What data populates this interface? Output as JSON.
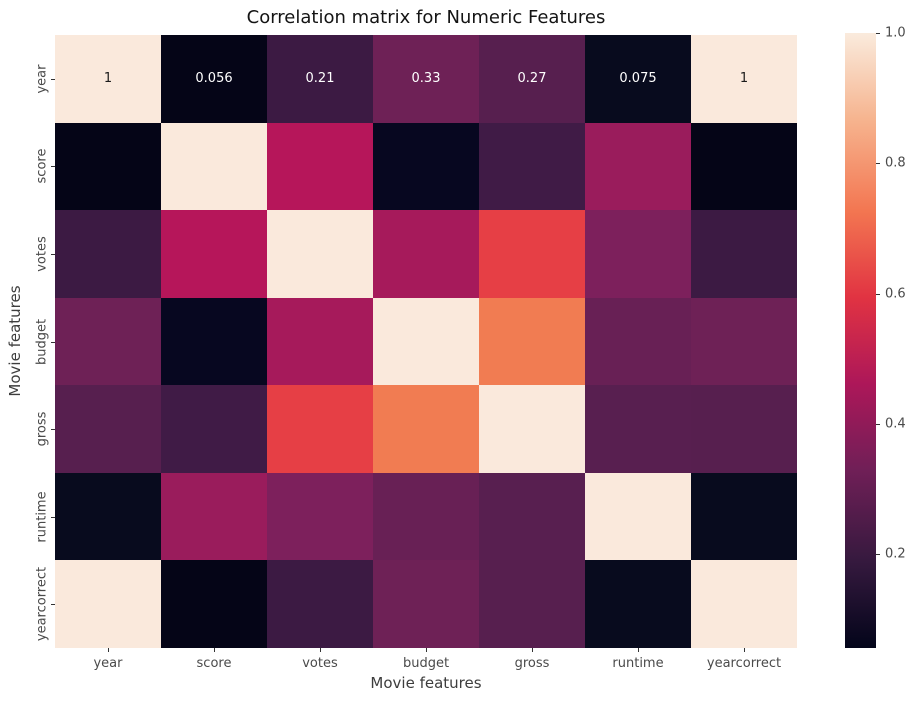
{
  "chart_data": {
    "type": "heatmap",
    "title": "Correlation matrix for Numeric Features",
    "xlabel": "Movie features",
    "ylabel": "Movie features",
    "categories": [
      "year",
      "score",
      "votes",
      "budget",
      "gross",
      "runtime",
      "yearcorrect"
    ],
    "vmin": 0.056,
    "vmax": 1.0,
    "grid": false,
    "colormap": "rocket",
    "legend_position": "colorbar-right",
    "matrix": [
      [
        1.0,
        0.056,
        0.21,
        0.33,
        0.27,
        0.075,
        1.0
      ],
      [
        0.056,
        1.0,
        0.47,
        0.072,
        0.22,
        0.41,
        0.056
      ],
      [
        0.21,
        0.47,
        1.0,
        0.44,
        0.61,
        0.35,
        0.21
      ],
      [
        0.33,
        0.072,
        0.44,
        1.0,
        0.75,
        0.32,
        0.33
      ],
      [
        0.27,
        0.22,
        0.61,
        0.75,
        1.0,
        0.28,
        0.27
      ],
      [
        0.075,
        0.41,
        0.35,
        0.32,
        0.28,
        1.0,
        0.075
      ],
      [
        1.0,
        0.056,
        0.21,
        0.33,
        0.27,
        0.075,
        1.0
      ]
    ],
    "cell_colors": [
      [
        "#FAE9DC",
        "#050517",
        "#3C1A43",
        "#6E2156",
        "#571F4F",
        "#080B1E",
        "#FAE9DC"
      ],
      [
        "#050517",
        "#FAE9DC",
        "#B6165A",
        "#070720",
        "#401B46",
        "#9A1C5C",
        "#050517"
      ],
      [
        "#3C1A43",
        "#B6165A",
        "#FAE9DC",
        "#A61A5B",
        "#E63F45",
        "#7D205C",
        "#3C1A43"
      ],
      [
        "#6E2156",
        "#070720",
        "#A61A5B",
        "#FAE9DC",
        "#F17C52",
        "#682055",
        "#6E2156"
      ],
      [
        "#571F4F",
        "#401B46",
        "#E63F45",
        "#F17C52",
        "#FAE9DC",
        "#581F50",
        "#571F4F"
      ],
      [
        "#080B1E",
        "#9A1C5C",
        "#7D205C",
        "#682055",
        "#581F50",
        "#FAE9DC",
        "#080B1E"
      ],
      [
        "#FAE9DC",
        "#050517",
        "#3C1A43",
        "#6E2156",
        "#571F4F",
        "#080B1E",
        "#FAE9DC"
      ]
    ],
    "annotations": {
      "row_index": 0,
      "labels": [
        "1",
        "0.056",
        "0.21",
        "0.33",
        "0.27",
        "0.075",
        "1"
      ],
      "colors": [
        "#1A1A1A",
        "#FFFFFF",
        "#FFFFFF",
        "#FFFFFF",
        "#FFFFFF",
        "#FFFFFF",
        "#1A1A1A"
      ]
    },
    "colorbar": {
      "tick_labels": [
        "1.0",
        "0.8",
        "0.6",
        "0.4",
        "0.2"
      ],
      "tick_values": [
        1.0,
        0.8,
        0.6,
        0.4,
        0.2
      ],
      "gradient_stops": [
        {
          "pos": 0.0,
          "color": "#03051A"
        },
        {
          "pos": 0.14,
          "color": "#35193E"
        },
        {
          "pos": 0.29,
          "color": "#701F57"
        },
        {
          "pos": 0.43,
          "color": "#AD1759"
        },
        {
          "pos": 0.57,
          "color": "#E13342"
        },
        {
          "pos": 0.71,
          "color": "#F37651"
        },
        {
          "pos": 0.86,
          "color": "#F6B48F"
        },
        {
          "pos": 1.0,
          "color": "#FAEBDD"
        }
      ]
    }
  },
  "style_colors": {
    "background": "#FFFFFF",
    "title_text": "#141414",
    "tick_label_text": "#4A4A4A",
    "axis_label_text": "#3D3D3D",
    "tick_mark": "#333333"
  }
}
